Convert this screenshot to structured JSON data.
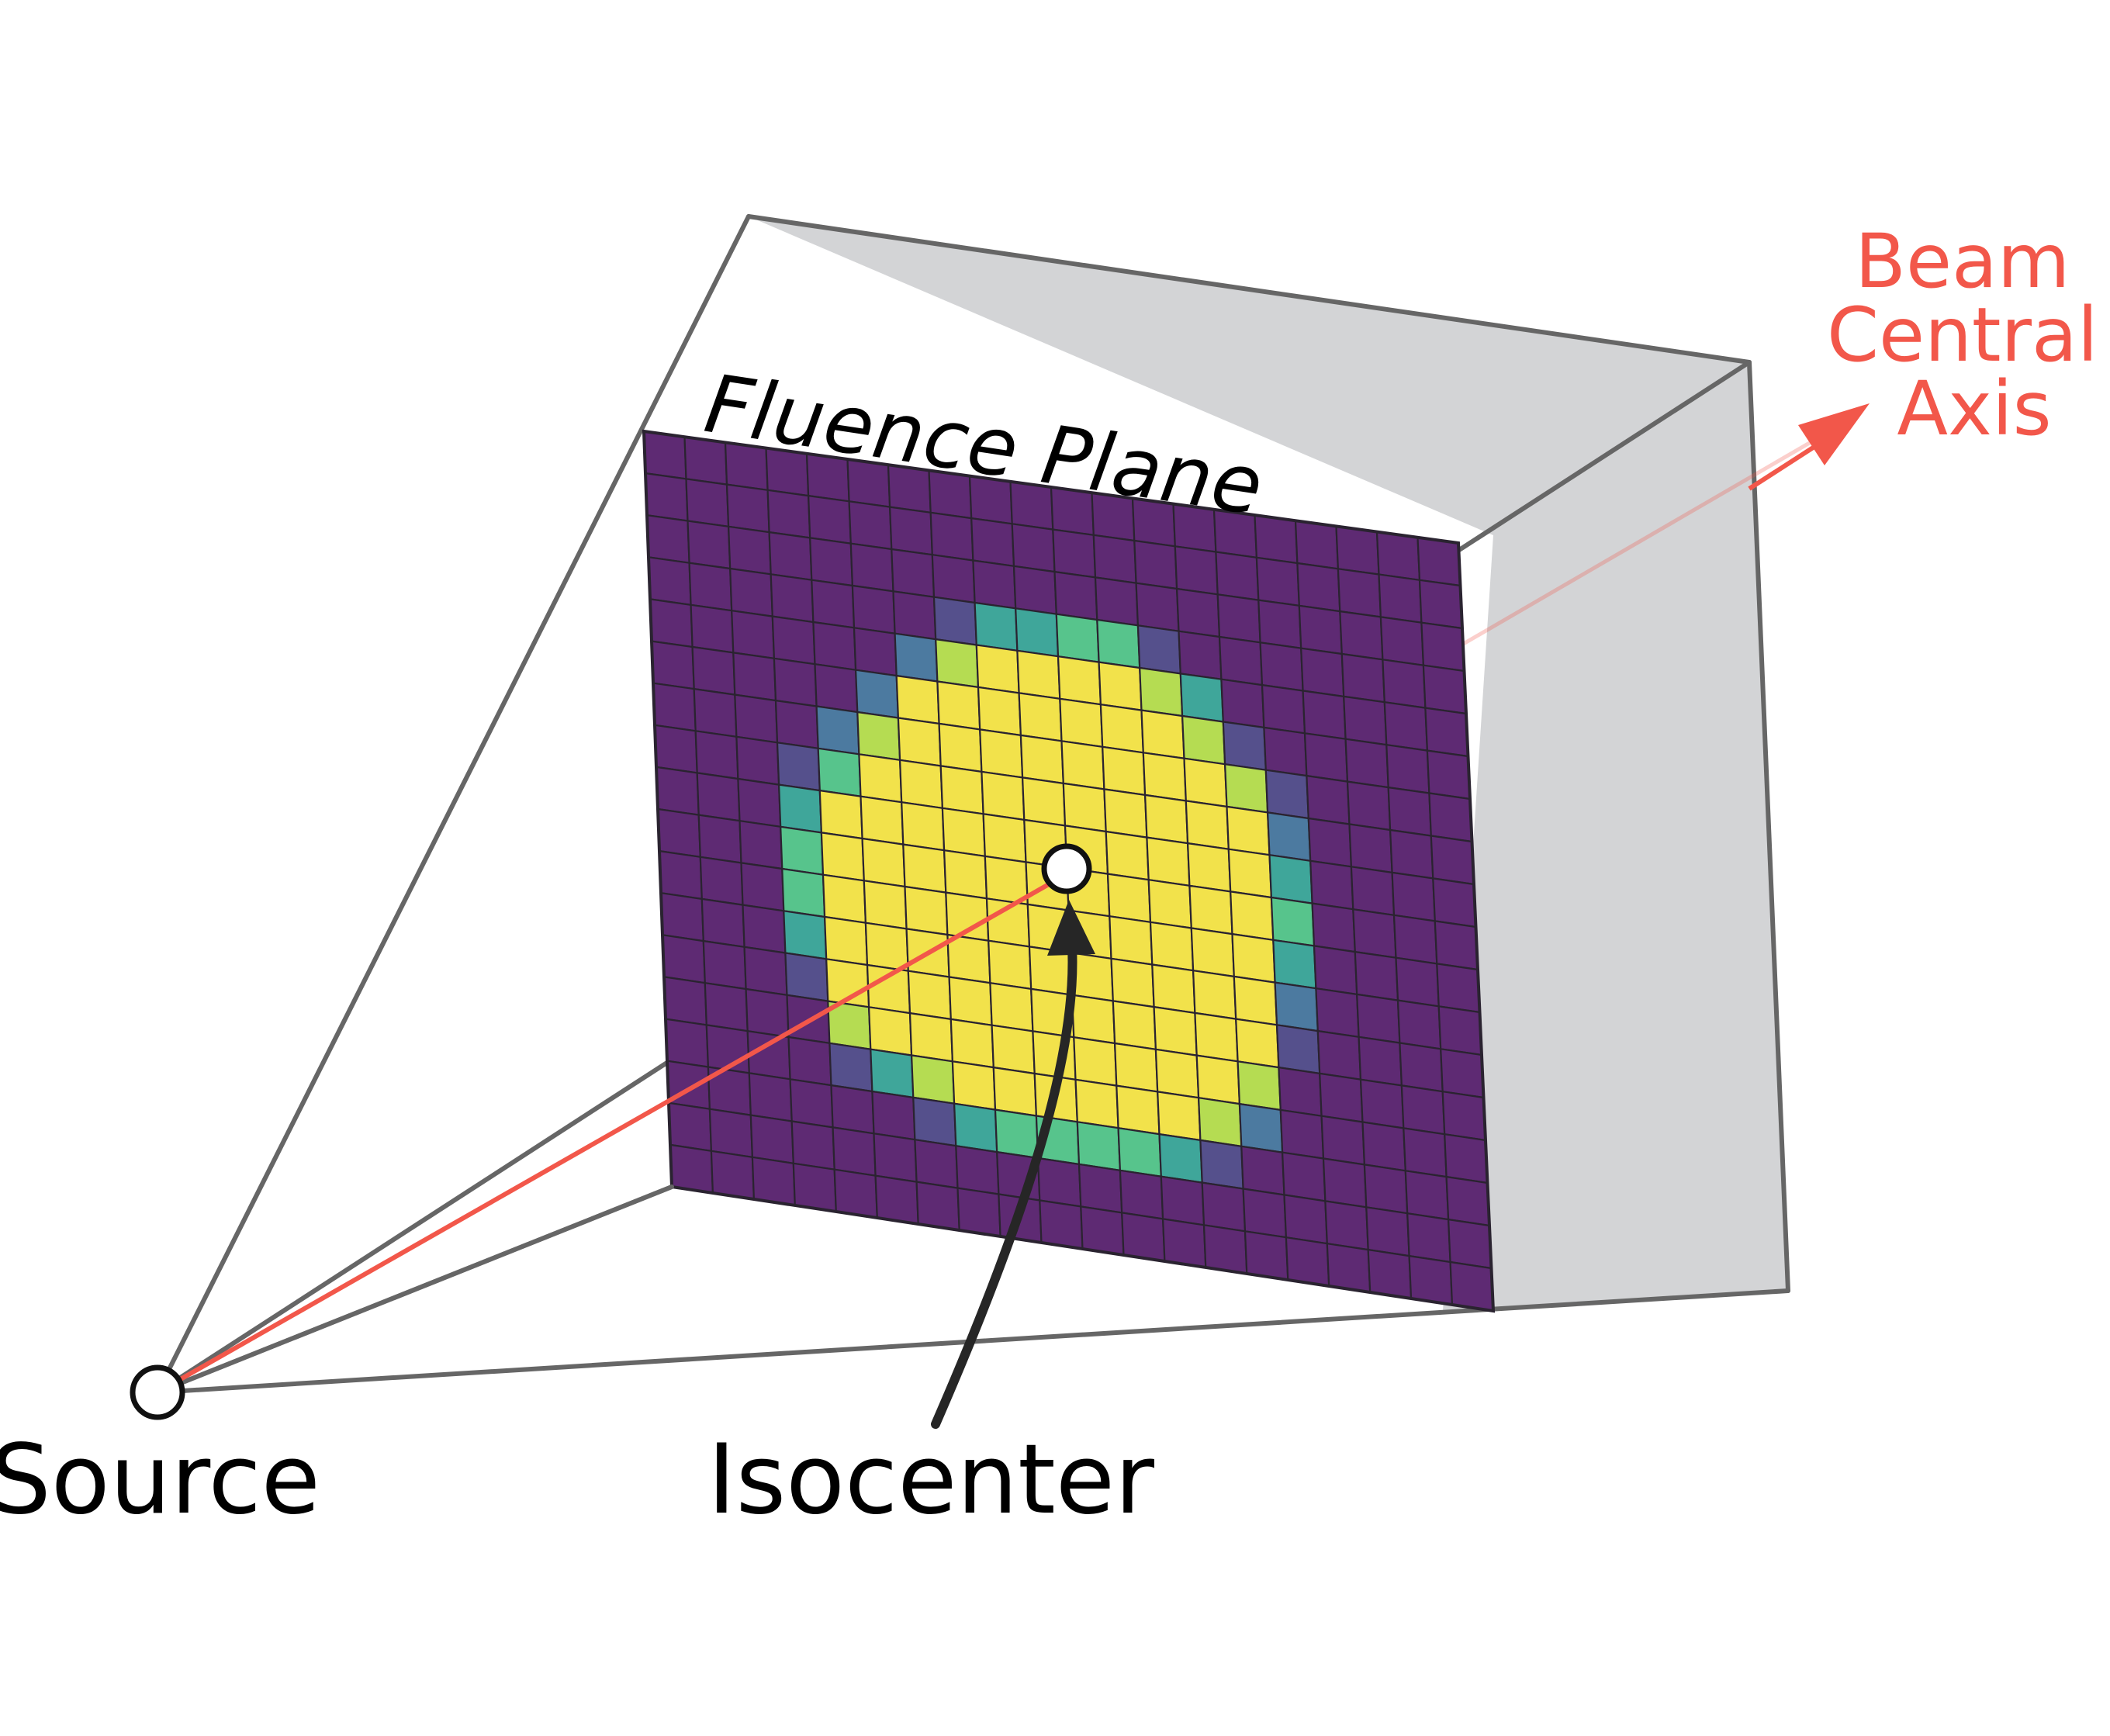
{
  "labels": {
    "fluence_plane": "Fluence Plane",
    "beam_axis": [
      "Beam",
      "Central",
      "Axis"
    ],
    "source": "Source",
    "isocenter": "Isocenter"
  },
  "colors": {
    "background": "#ffffff",
    "frustum_face": "#d3d4d6",
    "frustum_edge": "#666666",
    "beam_axis": "#f2574a",
    "text": "#000000",
    "grid_line": "#2a2330",
    "fluence_levels": [
      "#5e2a73",
      "#55508c",
      "#4c7aa0",
      "#3fa69a",
      "#57c48c",
      "#b5dc52",
      "#f2e24b"
    ]
  },
  "fluence": {
    "columns": 20,
    "rows": 18,
    "levels": [
      "00000000000000000000",
      "00000000000000000000",
      "00000000000000000000",
      "00000001334410000000",
      "00000025666653000000",
      "00000266666665100000",
      "00002566666666510000",
      "00014666666666620000",
      "00036666666666630000",
      "00046666666666640000",
      "00046666666666630000",
      "00036666666666620000",
      "00016666666666610000",
      "00005666666666500000",
      "00001356666665200000",
      "00000013444431000000",
      "00000000000000000000",
      "00000000000000000000"
    ]
  }
}
